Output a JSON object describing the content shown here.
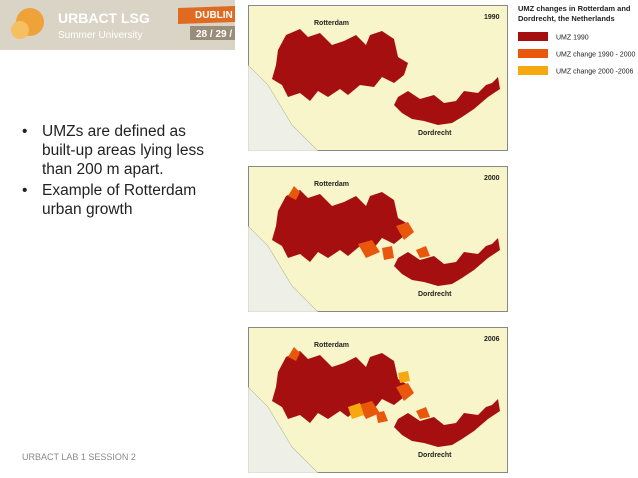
{
  "header": {
    "logo": "URBACT LSG",
    "subtitle": "Summer University",
    "city": "DUBLIN",
    "dates": "28 / 29 /"
  },
  "bullets": [
    "UMZs are defined as built-up areas lying less than 200 m apart.",
    "Example of Rotterdam urban growth"
  ],
  "footer": "URBACT LAB 1 SESSION 2",
  "maps": [
    {
      "year": "1990",
      "city_a": "Rotterdam",
      "city_b": "Dordrecht"
    },
    {
      "year": "2000",
      "city_a": "Rotterdam",
      "city_b": "Dordrecht"
    },
    {
      "year": "2006",
      "city_a": "Rotterdam",
      "city_b": "Dordrecht"
    }
  ],
  "legend": {
    "title_line1": "UMZ changes in Rotterdam and",
    "title_line2": "Dordrecht, the Netherlands",
    "items": [
      {
        "label": "UMZ 1990",
        "color": "#a50f0f"
      },
      {
        "label": "UMZ change 1990 - 2000",
        "color": "#e8570c"
      },
      {
        "label": "UMZ change 2000 -2006",
        "color": "#f5a80f"
      }
    ]
  }
}
